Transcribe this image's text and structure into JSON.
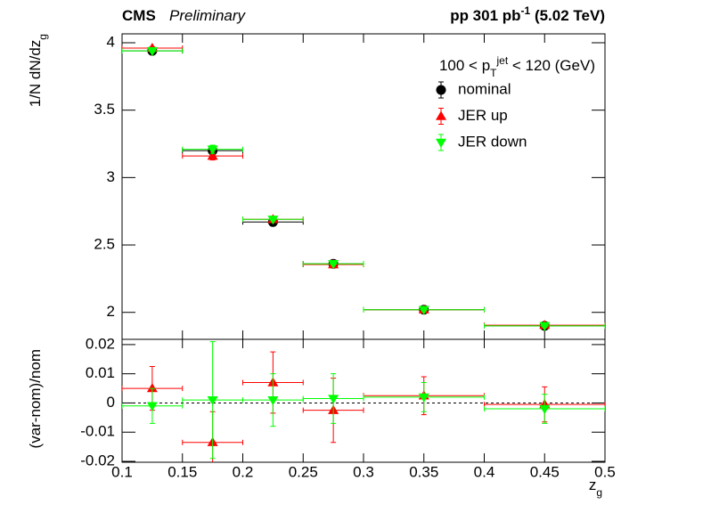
{
  "chart_data": [
    {
      "type": "errorbar",
      "title": "CMS",
      "subtitle": "Preliminary",
      "annotation": [
        {
          "text": "pp 301 pb"
        },
        {
          "text": "-1",
          "shift": "super"
        },
        {
          "text": " (5.02 TeV)"
        }
      ],
      "ylabel": [
        {
          "text": "1/N dN/dz"
        },
        {
          "text": "g",
          "shift": "sub"
        }
      ],
      "legend_title": [
        {
          "text": "100 < p"
        },
        {
          "text": "T",
          "shift": "sub"
        },
        {
          "text": "jet",
          "shift": "super"
        },
        {
          "text": " < 120 (GeV)"
        }
      ],
      "legend": "upper right",
      "x": [
        0.125,
        0.175,
        0.225,
        0.275,
        0.35,
        0.45
      ],
      "bins": [
        0.1,
        0.15,
        0.2,
        0.25,
        0.3,
        0.4,
        0.5
      ],
      "xlim": [
        0.1,
        0.5
      ],
      "xticks": [
        0.1,
        0.15,
        0.2,
        0.25,
        0.3,
        0.35,
        0.4,
        0.45,
        0.5
      ],
      "ylim": [
        1.8,
        4.066
      ],
      "yticks": [
        2,
        2.5,
        3,
        3.5,
        4
      ],
      "series": [
        {
          "name": "nominal",
          "color": "#000000",
          "marker": "circle",
          "values": [
            3.94,
            3.2,
            2.67,
            2.36,
            2.02,
            1.9
          ],
          "errors": [
            0.01,
            0.03,
            0.01,
            0.01,
            0.01,
            0.01
          ]
        },
        {
          "name": "JER up",
          "color": "#ff0000",
          "marker": "triangle-up",
          "values": [
            3.96,
            3.16,
            2.69,
            2.355,
            2.02,
            1.905
          ],
          "errors": [
            0.01,
            0.03,
            0.01,
            0.01,
            0.01,
            0.01
          ]
        },
        {
          "name": "JER down",
          "color": "#00ff00",
          "marker": "triangle-down",
          "values": [
            3.94,
            3.21,
            2.69,
            2.36,
            2.02,
            1.9
          ],
          "errors": [
            0.01,
            0.03,
            0.01,
            0.01,
            0.01,
            0.01
          ]
        }
      ]
    },
    {
      "type": "errorbar",
      "ylabel": [
        {
          "text": "(var-nom)/nom"
        }
      ],
      "xlabel": [
        {
          "text": "z"
        },
        {
          "text": "g",
          "shift": "sub"
        }
      ],
      "x": [
        0.125,
        0.175,
        0.225,
        0.275,
        0.35,
        0.45
      ],
      "bins": [
        0.1,
        0.15,
        0.2,
        0.25,
        0.3,
        0.4,
        0.5
      ],
      "xlim": [
        0.1,
        0.5
      ],
      "xticks": [
        0.1,
        0.15,
        0.2,
        0.25,
        0.3,
        0.35,
        0.4,
        0.45,
        0.5
      ],
      "ylim": [
        -0.0203,
        0.0218
      ],
      "yticks": [
        -0.02,
        -0.01,
        0,
        0.01,
        0.02
      ],
      "reference_line": 0,
      "series": [
        {
          "color": "#ff0000",
          "marker": "triangle-up",
          "values": [
            0.005,
            -0.0135,
            0.007,
            -0.0025,
            0.0025,
            -0.0005
          ],
          "errors": [
            0.0075,
            0.0105,
            0.0105,
            0.011,
            0.0065,
            0.006
          ]
        },
        {
          "color": "#00ff00",
          "marker": "triangle-down",
          "values": [
            -0.001,
            0.001,
            0.001,
            0.0015,
            0.002,
            -0.002
          ],
          "errors": [
            0.006,
            0.02,
            0.009,
            0.0085,
            0.005,
            0.005
          ]
        }
      ]
    }
  ]
}
